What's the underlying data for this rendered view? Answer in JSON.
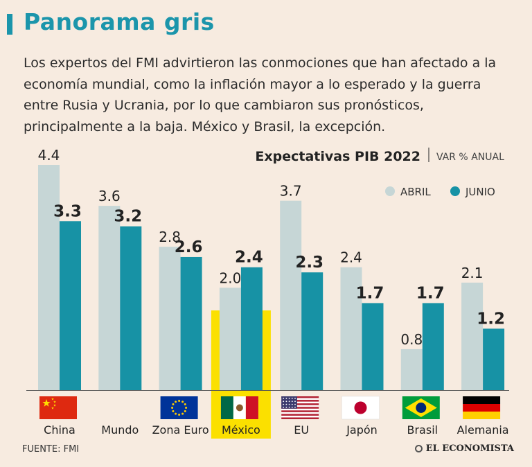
{
  "header": {
    "title": "Panorama gris",
    "description": "Los expertos del FMI advirtieron las conmociones que han afectado a la economía mundial, como la inflación mayor a lo esperado y la guerra entre Rusia y Ucrania, por lo que cambiaron sus pronósticos, principalmente a la baja. México y Brasil, la excepción."
  },
  "chart_data": {
    "type": "bar",
    "title": "Expectativas PIB 2022",
    "subtitle": "VAR % ANUAL",
    "categories": [
      "China",
      "Mundo",
      "Zona Euro",
      "México",
      "EU",
      "Japón",
      "Brasil",
      "Alemania"
    ],
    "series": [
      {
        "name": "ABRIL",
        "color": "#c6d6d6",
        "values": [
          4.4,
          3.6,
          2.8,
          2.0,
          3.7,
          2.4,
          0.8,
          2.1
        ],
        "labels": [
          "4.4",
          "3.6",
          "2.8",
          "2.0",
          "3.7",
          "2.4",
          "0.8",
          "2.1"
        ]
      },
      {
        "name": "JUNIO",
        "color": "#1792a5",
        "values": [
          3.3,
          3.2,
          2.6,
          2.4,
          2.3,
          1.7,
          1.7,
          1.2
        ],
        "labels": [
          "3.3",
          "3.2",
          "2.6",
          "2.4",
          "2.3",
          "1.7",
          "1.7",
          "1.2"
        ]
      }
    ],
    "highlight": "México",
    "highlight_color": "#fbe000",
    "ylim": [
      0,
      4.4
    ]
  },
  "footer": {
    "source": "FUENTE: FMI",
    "brand": "EL ECONOMISTA"
  }
}
